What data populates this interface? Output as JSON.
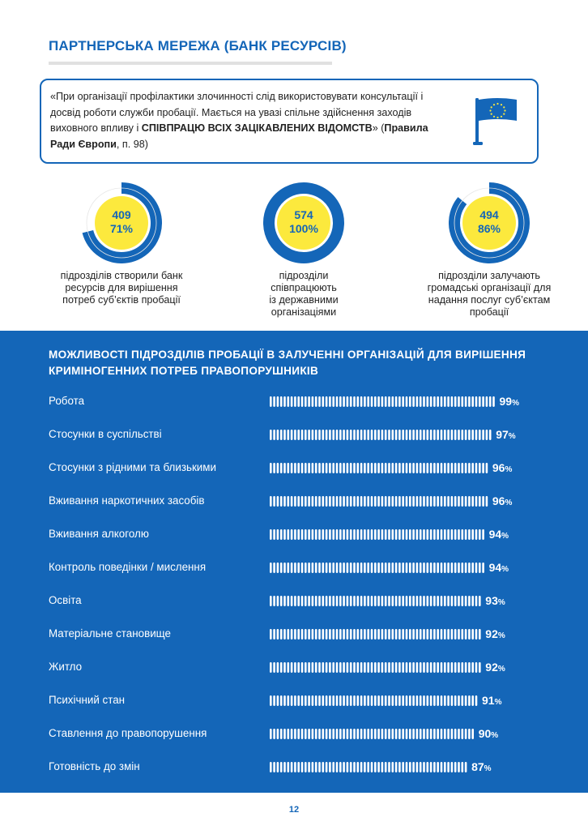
{
  "header": {
    "title": "ПАРТНЕРСЬКА МЕРЕЖА (БАНК РЕСУРСІВ)"
  },
  "quote": {
    "text_plain": "«При організації профілактики злочинності слід використовувати консультації і досвід роботи служби пробації. Мається на увазі спільне здійснення заходів виховного впливу і ",
    "text_bold": "СПІВПРАЦЮ ВСІХ ЗАЦІКАВЛЕНИХ ВІДОМСТВ",
    "text_after": "» (",
    "source_bold": "Правила Ради Європи",
    "source_after": ", п. 98)",
    "flag_icon": "eu-flag-icon"
  },
  "stats": [
    {
      "count": "409",
      "percent": "71%",
      "fraction": 0.71,
      "description": "підрозділів створили банк ресурсів для вирішення потреб суб’єктів пробації"
    },
    {
      "count": "574",
      "percent": "100%",
      "fraction": 1.0,
      "description": "підрозділи співпрацюють із державними організаціями"
    },
    {
      "count": "494",
      "percent": "86%",
      "fraction": 0.86,
      "description": "підрозділи залучають громадські організації для надання послуг суб’єктам пробації"
    }
  ],
  "band": {
    "title": "МОЖЛИВОСТІ ПІДРОЗДІЛІВ ПРОБАЦІЇ В ЗАЛУЧЕННІ ОРГАНІЗАЦІЙ ДЛЯ ВИРІШЕННЯ КРИМІНОГЕННИХ ПОТРЕБ ПРАВОПОРУШНИКІВ"
  },
  "chart_data": {
    "type": "bar",
    "title": "МОЖЛИВОСТІ ПІДРОЗДІЛІВ ПРОБАЦІЇ В ЗАЛУЧЕННІ ОРГАНІЗАЦІЙ ДЛЯ ВИРІШЕННЯ КРИМІНОГЕННИХ ПОТРЕБ ПРАВОПОРУШНИКІВ",
    "orientation": "horizontal",
    "unit": "%",
    "categories": [
      "Робота",
      "Стосунки в суспільстві",
      "Стосунки з рідними та близькими",
      "Вживання наркотичних засобів",
      "Вживання алкоголю",
      "Контроль поведінки / мислення",
      "Освіта",
      "Матеріальне становище",
      "Житло",
      "Психічний стан",
      "Ставлення до правопорушення",
      "Готовність до змін"
    ],
    "values": [
      99,
      97,
      96,
      96,
      94,
      94,
      93,
      92,
      92,
      91,
      90,
      87
    ],
    "colors": {
      "background": "#1466b8",
      "bar": "#ffffff",
      "accent": "#1466b8",
      "ring": "#1466b8",
      "core": "#fce93d"
    }
  },
  "footer": {
    "page_number": "12"
  }
}
